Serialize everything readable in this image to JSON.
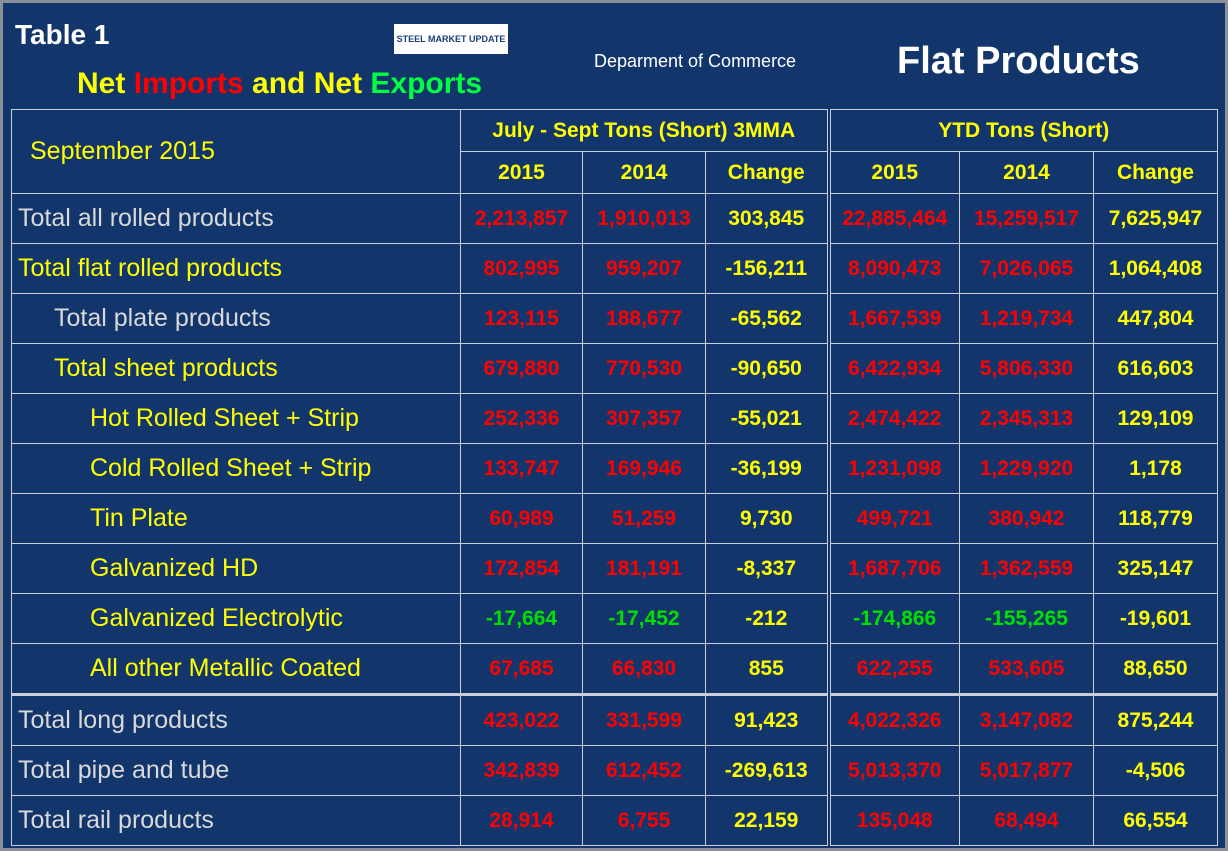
{
  "header": {
    "table_label": "Table 1",
    "title": {
      "net1": "Net",
      "imports": "Imports",
      "net2": "and Net",
      "exports": "Exports"
    },
    "logo": "STEEL MARKET UPDATE",
    "source": "Deparment of Commerce",
    "product": "Flat Products"
  },
  "table": {
    "period": "September 2015",
    "groups": [
      "July - Sept Tons (Short) 3MMA",
      "YTD Tons (Short)"
    ],
    "subheaders": [
      "2015",
      "2014",
      "Change",
      "2015",
      "2014",
      "Change"
    ],
    "rows": [
      [
        "Total all rolled products",
        "2,213,857",
        "1,910,013",
        "303,845",
        "22,885,464",
        "15,259,517",
        "7,625,947"
      ],
      [
        "Total flat rolled products",
        "802,995",
        "959,207",
        "-156,211",
        "8,090,473",
        "7,026,065",
        "1,064,408"
      ],
      [
        "Total plate products",
        "123,115",
        "188,677",
        "-65,562",
        "1,667,539",
        "1,219,734",
        "447,804"
      ],
      [
        "Total sheet products",
        "679,880",
        "770,530",
        "-90,650",
        "6,422,934",
        "5,806,330",
        "616,603"
      ],
      [
        "Hot Rolled Sheet + Strip",
        "252,336",
        "307,357",
        "-55,021",
        "2,474,422",
        "2,345,313",
        "129,109"
      ],
      [
        "Cold Rolled Sheet + Strip",
        "133,747",
        "169,946",
        "-36,199",
        "1,231,098",
        "1,229,920",
        "1,178"
      ],
      [
        "Tin Plate",
        "60,989",
        "51,259",
        "9,730",
        "499,721",
        "380,942",
        "118,779"
      ],
      [
        "Galvanized HD",
        "172,854",
        "181,191",
        "-8,337",
        "1,687,706",
        "1,362,559",
        "325,147"
      ],
      [
        "Galvanized Electrolytic",
        "-17,664",
        "-17,452",
        "-212",
        "-174,866",
        "-155,265",
        "-19,601"
      ],
      [
        "All other Metallic Coated",
        "67,685",
        "66,830",
        "855",
        "622,255",
        "533,605",
        "88,650"
      ],
      [
        "Total long products",
        "423,022",
        "331,599",
        "91,423",
        "4,022,326",
        "3,147,082",
        "875,244"
      ],
      [
        "Total pipe and tube",
        "342,839",
        "612,452",
        "-269,613",
        "5,013,370",
        "5,017,877",
        "-4,506"
      ],
      [
        "Total rail products",
        "28,914",
        "6,755",
        "22,159",
        "135,048",
        "68,494",
        "66,554"
      ]
    ]
  }
}
